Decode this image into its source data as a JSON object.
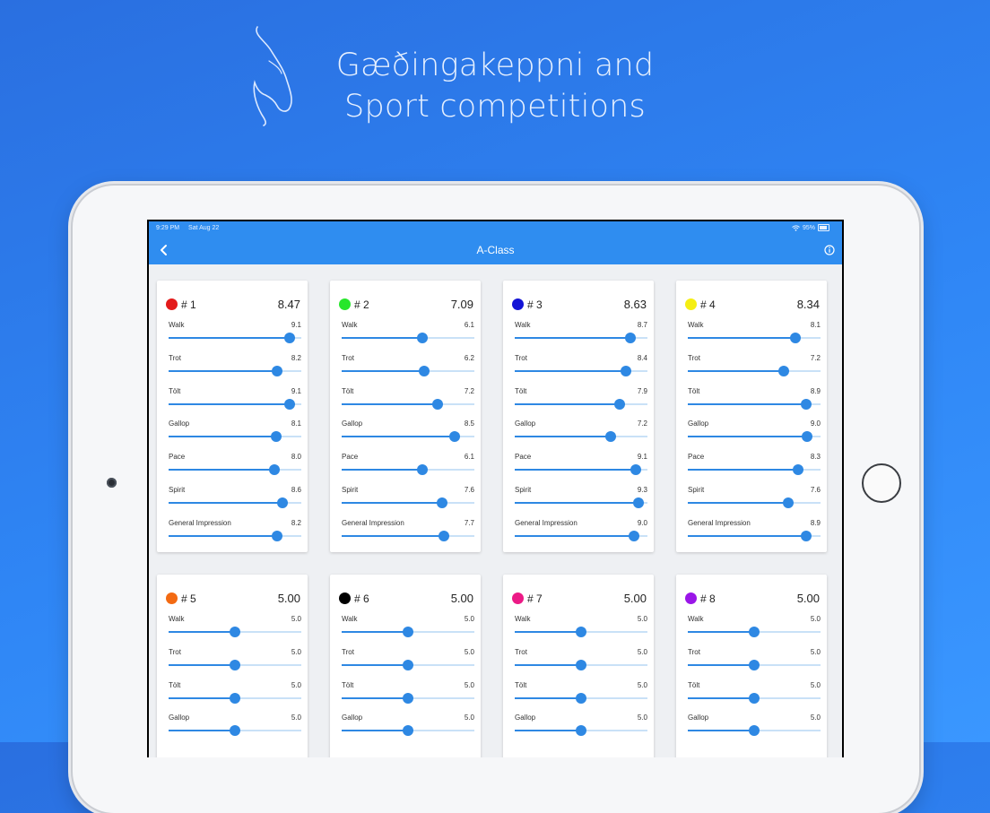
{
  "headline": {
    "line1": "Gæðingakeppni and",
    "line2": "Sport competitions"
  },
  "status_bar": {
    "time": "9:29 PM",
    "date": "Sat Aug 22",
    "battery": "95%"
  },
  "nav": {
    "title": "A-Class",
    "back_icon": "chevron-left-icon",
    "info_icon": "info-icon"
  },
  "colors": {
    "accent": "#2e88e3",
    "track": "#c9e1f7",
    "navbar": "#2f8df0"
  },
  "slider_range": [
    0,
    10
  ],
  "cards": [
    {
      "number": "# 1",
      "color": "#e31b1b",
      "total": "8.47",
      "metrics": [
        {
          "label": "Walk",
          "value": "9.1"
        },
        {
          "label": "Trot",
          "value": "8.2"
        },
        {
          "label": "Tölt",
          "value": "9.1"
        },
        {
          "label": "Gallop",
          "value": "8.1"
        },
        {
          "label": "Pace",
          "value": "8.0"
        },
        {
          "label": "Spirit",
          "value": "8.6"
        },
        {
          "label": "General Impression",
          "value": "8.2"
        }
      ]
    },
    {
      "number": "# 2",
      "color": "#27e62b",
      "total": "7.09",
      "metrics": [
        {
          "label": "Walk",
          "value": "6.1"
        },
        {
          "label": "Trot",
          "value": "6.2"
        },
        {
          "label": "Tölt",
          "value": "7.2"
        },
        {
          "label": "Gallop",
          "value": "8.5"
        },
        {
          "label": "Pace",
          "value": "6.1"
        },
        {
          "label": "Spirit",
          "value": "7.6"
        },
        {
          "label": "General Impression",
          "value": "7.7"
        }
      ]
    },
    {
      "number": "# 3",
      "color": "#1414d6",
      "total": "8.63",
      "metrics": [
        {
          "label": "Walk",
          "value": "8.7"
        },
        {
          "label": "Trot",
          "value": "8.4"
        },
        {
          "label": "Tölt",
          "value": "7.9"
        },
        {
          "label": "Gallop",
          "value": "7.2"
        },
        {
          "label": "Pace",
          "value": "9.1"
        },
        {
          "label": "Spirit",
          "value": "9.3"
        },
        {
          "label": "General Impression",
          "value": "9.0"
        }
      ]
    },
    {
      "number": "# 4",
      "color": "#f5ee13",
      "total": "8.34",
      "metrics": [
        {
          "label": "Walk",
          "value": "8.1"
        },
        {
          "label": "Trot",
          "value": "7.2"
        },
        {
          "label": "Tölt",
          "value": "8.9"
        },
        {
          "label": "Gallop",
          "value": "9.0"
        },
        {
          "label": "Pace",
          "value": "8.3"
        },
        {
          "label": "Spirit",
          "value": "7.6"
        },
        {
          "label": "General Impression",
          "value": "8.9"
        }
      ]
    },
    {
      "number": "# 5",
      "color": "#f36a12",
      "total": "5.00",
      "metrics": [
        {
          "label": "Walk",
          "value": "5.0"
        },
        {
          "label": "Trot",
          "value": "5.0"
        },
        {
          "label": "Tölt",
          "value": "5.0"
        },
        {
          "label": "Gallop",
          "value": "5.0"
        }
      ]
    },
    {
      "number": "# 6",
      "color": "#000000",
      "total": "5.00",
      "metrics": [
        {
          "label": "Walk",
          "value": "5.0"
        },
        {
          "label": "Trot",
          "value": "5.0"
        },
        {
          "label": "Tölt",
          "value": "5.0"
        },
        {
          "label": "Gallop",
          "value": "5.0"
        }
      ]
    },
    {
      "number": "# 7",
      "color": "#ec1a86",
      "total": "5.00",
      "metrics": [
        {
          "label": "Walk",
          "value": "5.0"
        },
        {
          "label": "Trot",
          "value": "5.0"
        },
        {
          "label": "Tölt",
          "value": "5.0"
        },
        {
          "label": "Gallop",
          "value": "5.0"
        }
      ]
    },
    {
      "number": "# 8",
      "color": "#9a16e8",
      "total": "5.00",
      "metrics": [
        {
          "label": "Walk",
          "value": "5.0"
        },
        {
          "label": "Trot",
          "value": "5.0"
        },
        {
          "label": "Tölt",
          "value": "5.0"
        },
        {
          "label": "Gallop",
          "value": "5.0"
        }
      ]
    }
  ]
}
